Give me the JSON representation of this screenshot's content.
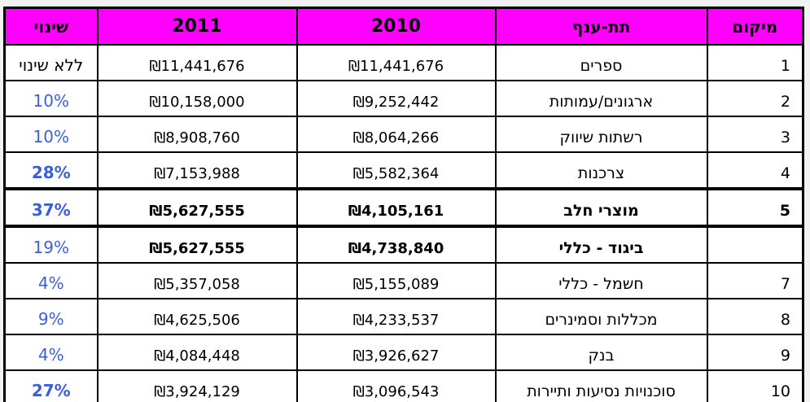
{
  "colors": {
    "header_bg": "#FF00FF",
    "percent_blue": "#3B5FD8",
    "border": "#000000",
    "text": "#000000",
    "page_bg": "#f2f2f2"
  },
  "chart_data": {
    "type": "table",
    "direction": "rtl",
    "title": "",
    "columns": [
      "מיקום",
      "תת-ענף",
      "2010",
      "2011",
      "שינוי"
    ],
    "rows": [
      [
        "1",
        "ספרים",
        "₪11,441,676",
        "₪11,441,676",
        "ללא שינוי"
      ],
      [
        "2",
        "ארגונים/עמותות",
        "₪9,252,442",
        "₪10,158,000",
        "10%"
      ],
      [
        "3",
        "רשתות שיווק",
        "₪8,064,266",
        "₪8,908,760",
        "10%"
      ],
      [
        "4",
        "צרכנות",
        "₪5,582,364",
        "₪7,153,988",
        "28%"
      ],
      [
        "5",
        "מוצרי חלב",
        "₪4,105,161",
        "₪5,627,555",
        "37%"
      ],
      [
        "",
        "ביגוד - כללי",
        "₪4,738,840",
        "₪5,627,555",
        "19%"
      ],
      [
        "7",
        "חשמל - כללי",
        "₪5,155,089",
        "₪5,357,058",
        "4%"
      ],
      [
        "8",
        "מכללות וסמינרים",
        "₪4,233,537",
        "₪4,625,506",
        "9%"
      ],
      [
        "9",
        "בנק",
        "₪3,926,627",
        "₪4,084,448",
        "4%"
      ],
      [
        "10",
        "סוכנויות נסיעות ותיירות",
        "₪3,096,543",
        "₪3,924,129",
        "27%"
      ]
    ]
  },
  "table": {
    "headers": {
      "rank": "מיקום",
      "sector": "תת-ענף",
      "y2010": "2010",
      "y2011": "2011",
      "change": "שינוי"
    },
    "rows": [
      {
        "rank": "1",
        "sector": "ספרים",
        "y2010": "₪11,441,676",
        "y2011": "₪11,441,676",
        "change": "ללא שינוי",
        "rank_bold": false,
        "sector_bold": false,
        "values_bold": false,
        "change_bold": false,
        "change_black": true,
        "thick": false
      },
      {
        "rank": "2",
        "sector": "ארגונים/עמותות",
        "y2010": "₪9,252,442",
        "y2011": "₪10,158,000",
        "change": "10%",
        "rank_bold": false,
        "sector_bold": false,
        "values_bold": false,
        "change_bold": false,
        "change_black": false,
        "thick": false
      },
      {
        "rank": "3",
        "sector": "רשתות שיווק",
        "y2010": "₪8,064,266",
        "y2011": "₪8,908,760",
        "change": "10%",
        "rank_bold": false,
        "sector_bold": false,
        "values_bold": false,
        "change_bold": false,
        "change_black": false,
        "thick": false
      },
      {
        "rank": "4",
        "sector": "צרכנות",
        "y2010": "₪5,582,364",
        "y2011": "₪7,153,988",
        "change": "28%",
        "rank_bold": false,
        "sector_bold": false,
        "values_bold": false,
        "change_bold": true,
        "change_black": false,
        "thick": false
      },
      {
        "rank": "5",
        "sector": "מוצרי חלב",
        "y2010": "₪4,105,161",
        "y2011": "₪5,627,555",
        "change": "37%",
        "rank_bold": true,
        "sector_bold": true,
        "values_bold": true,
        "change_bold": true,
        "change_black": false,
        "thick": true
      },
      {
        "rank": "",
        "sector": "ביגוד - כללי",
        "y2010": "₪4,738,840",
        "y2011": "₪5,627,555",
        "change": "19%",
        "rank_bold": false,
        "sector_bold": true,
        "values_bold": true,
        "change_bold": false,
        "change_black": false,
        "thick": false
      },
      {
        "rank": "7",
        "sector": "חשמל - כללי",
        "y2010": "₪5,155,089",
        "y2011": "₪5,357,058",
        "change": "4%",
        "rank_bold": false,
        "sector_bold": false,
        "values_bold": false,
        "change_bold": false,
        "change_black": false,
        "thick": false
      },
      {
        "rank": "8",
        "sector": "מכללות וסמינרים",
        "y2010": "₪4,233,537",
        "y2011": "₪4,625,506",
        "change": "9%",
        "rank_bold": false,
        "sector_bold": false,
        "values_bold": false,
        "change_bold": false,
        "change_black": false,
        "thick": false
      },
      {
        "rank": "9",
        "sector": "בנק",
        "y2010": "₪3,926,627",
        "y2011": "₪4,084,448",
        "change": "4%",
        "rank_bold": false,
        "sector_bold": false,
        "values_bold": false,
        "change_bold": false,
        "change_black": false,
        "thick": false
      },
      {
        "rank": "10",
        "sector": "סוכנויות נסיעות ותיירות",
        "y2010": "₪3,096,543",
        "y2011": "₪3,924,129",
        "change": "27%",
        "rank_bold": false,
        "sector_bold": false,
        "values_bold": false,
        "change_bold": true,
        "change_black": false,
        "thick": false
      }
    ]
  }
}
